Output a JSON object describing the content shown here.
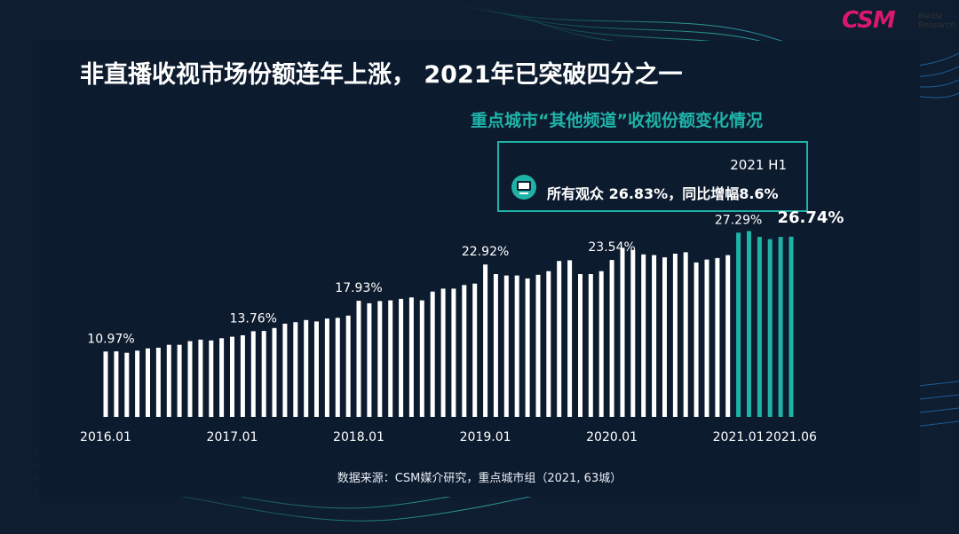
{
  "header": {
    "title": "非直播收视市场份额连年上涨， 2021年已突破四分之一",
    "subtitle": "重点城市“其他频道”收视份额变化情况"
  },
  "brand": {
    "logo_text": "CSM",
    "logo_sub_1": "Media",
    "logo_sub_2": "Research"
  },
  "callout": {
    "period": "2021 H1",
    "text": "所有观众 26.83%，同比增幅8.6%"
  },
  "footer": {
    "source": "数据来源：CSM媒介研究，重点城市组（2021, 63城）"
  },
  "colors": {
    "background": "#0e1d30",
    "accent": "#1fb3a8",
    "bar": "#ffffff",
    "bar_highlight": "#1fb3a8",
    "brand": "#d8196e"
  },
  "chart_data": {
    "type": "bar",
    "title": "重点城市“其他频道”收视份额变化情况",
    "xlabel": "",
    "ylabel": "",
    "unit": "%",
    "ylim": [
      0,
      30
    ],
    "x_ticks": [
      "2016.01",
      "2017.01",
      "2018.01",
      "2019.01",
      "2020.01",
      "2021.01",
      "2021.06"
    ],
    "highlight_from": "2021.01",
    "categories": [
      "2016.01",
      "2016.02",
      "2016.03",
      "2016.04",
      "2016.05",
      "2016.06",
      "2016.07",
      "2016.08",
      "2016.09",
      "2016.10",
      "2016.11",
      "2016.12",
      "2017.01",
      "2017.02",
      "2017.03",
      "2017.04",
      "2017.05",
      "2017.06",
      "2017.07",
      "2017.08",
      "2017.09",
      "2017.10",
      "2017.11",
      "2017.12",
      "2018.01",
      "2018.02",
      "2018.03",
      "2018.04",
      "2018.05",
      "2018.06",
      "2018.07",
      "2018.08",
      "2018.09",
      "2018.10",
      "2018.11",
      "2018.12",
      "2019.01",
      "2019.02",
      "2019.03",
      "2019.04",
      "2019.05",
      "2019.06",
      "2019.07",
      "2019.08",
      "2019.09",
      "2019.10",
      "2019.11",
      "2019.12",
      "2020.01",
      "2020.02",
      "2020.03",
      "2020.04",
      "2020.05",
      "2020.06",
      "2020.07",
      "2020.08",
      "2020.09",
      "2020.10",
      "2020.11",
      "2020.12",
      "2021.01",
      "2021.02",
      "2021.03",
      "2021.04",
      "2021.05",
      "2021.06"
    ],
    "values": [
      10.97,
      11.0,
      10.8,
      11.1,
      11.4,
      11.5,
      11.9,
      11.9,
      12.4,
      12.6,
      12.5,
      12.8,
      13.0,
      13.2,
      13.76,
      13.8,
      14.2,
      14.8,
      15.0,
      15.3,
      15.1,
      15.5,
      15.6,
      15.9,
      17.93,
      17.6,
      17.9,
      18.0,
      18.2,
      18.4,
      18.0,
      19.2,
      19.6,
      19.6,
      20.1,
      20.3,
      22.92,
      21.6,
      21.4,
      21.4,
      21.0,
      21.5,
      22.0,
      23.4,
      23.5,
      21.6,
      21.6,
      22.0,
      23.54,
      25.2,
      24.9,
      24.3,
      24.2,
      23.9,
      24.4,
      24.6,
      23.2,
      23.6,
      23.8,
      24.2,
      27.29,
      27.5,
      26.7,
      26.4,
      26.7,
      26.74
    ],
    "data_labels": [
      {
        "category": "2016.01",
        "text": "10.97%"
      },
      {
        "category": "2017.03",
        "text": "13.76%"
      },
      {
        "category": "2018.01",
        "text": "17.93%"
      },
      {
        "category": "2019.01",
        "text": "22.92%"
      },
      {
        "category": "2020.01",
        "text": "23.54%"
      },
      {
        "category": "2021.01",
        "text": "27.29%"
      },
      {
        "category": "2021.06",
        "text": "26.74%",
        "emphasis": true
      }
    ]
  }
}
